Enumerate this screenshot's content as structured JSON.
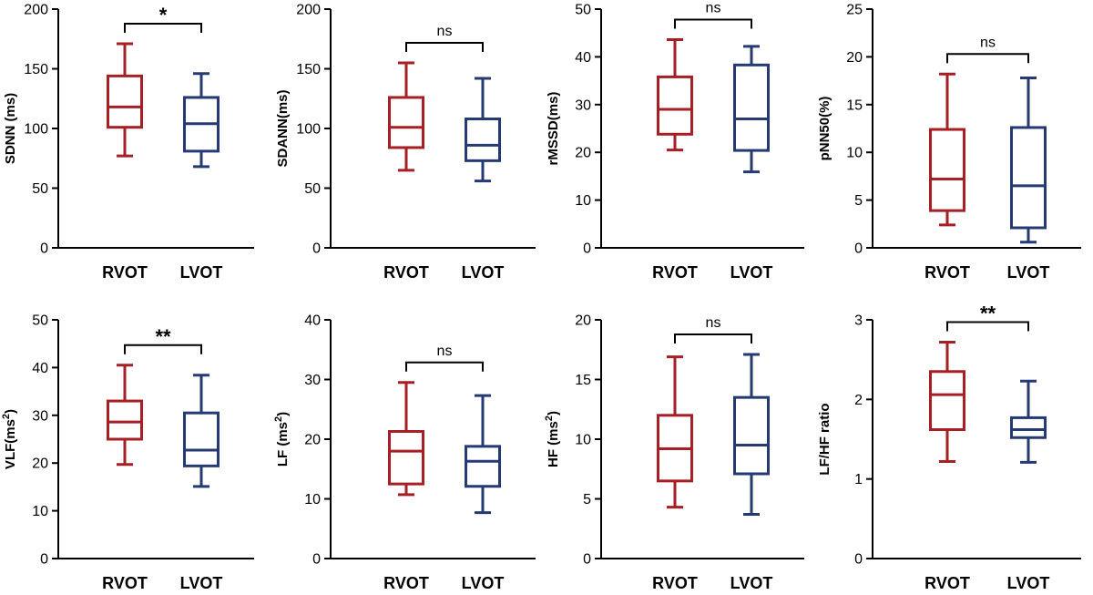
{
  "colors": {
    "RVOT": "#a51f24",
    "LVOT": "#253a72",
    "axis": "#000000"
  },
  "chart_data": [
    {
      "type": "box",
      "title": "",
      "ylabel": "SDNN (ms)",
      "ylabel_sup": "",
      "ylim": [
        0,
        200
      ],
      "yticks": [
        "0",
        "50",
        "100",
        "150",
        "200"
      ],
      "categories": [
        "RVOT",
        "LVOT"
      ],
      "boxes": [
        {
          "group": "RVOT",
          "min": 77,
          "q1": 101,
          "median": 118,
          "q3": 144,
          "max": 171
        },
        {
          "group": "LVOT",
          "min": 68,
          "q1": 81,
          "median": 104,
          "q3": 126,
          "max": 146
        }
      ],
      "significance": "*"
    },
    {
      "type": "box",
      "title": "",
      "ylabel": "SDANN(ms)",
      "ylabel_sup": "",
      "ylim": [
        0,
        200
      ],
      "yticks": [
        "0",
        "50",
        "100",
        "150",
        "200"
      ],
      "categories": [
        "RVOT",
        "LVOT"
      ],
      "boxes": [
        {
          "group": "RVOT",
          "min": 65,
          "q1": 84,
          "median": 101,
          "q3": 126,
          "max": 155
        },
        {
          "group": "LVOT",
          "min": 56,
          "q1": 73,
          "median": 86,
          "q3": 108,
          "max": 142
        }
      ],
      "significance": "ns"
    },
    {
      "type": "box",
      "title": "",
      "ylabel": "rMSSD(ms)",
      "ylabel_sup": "",
      "ylim": [
        0,
        50
      ],
      "yticks": [
        "0",
        "10",
        "20",
        "30",
        "40",
        "50"
      ],
      "categories": [
        "RVOT",
        "LVOT"
      ],
      "boxes": [
        {
          "group": "RVOT",
          "min": 20.5,
          "q1": 23.8,
          "median": 29,
          "q3": 35.8,
          "max": 43.6
        },
        {
          "group": "LVOT",
          "min": 15.9,
          "q1": 20.4,
          "median": 27,
          "q3": 38.3,
          "max": 42.2
        }
      ],
      "significance": "ns"
    },
    {
      "type": "box",
      "title": "",
      "ylabel": "pNN50(%)",
      "ylabel_sup": "",
      "ylim": [
        0,
        25
      ],
      "yticks": [
        "0",
        "5",
        "10",
        "15",
        "20",
        "25"
      ],
      "categories": [
        "RVOT",
        "LVOT"
      ],
      "boxes": [
        {
          "group": "RVOT",
          "min": 2.4,
          "q1": 3.9,
          "median": 7.2,
          "q3": 12.4,
          "max": 18.2
        },
        {
          "group": "LVOT",
          "min": 0.6,
          "q1": 2.1,
          "median": 6.5,
          "q3": 12.6,
          "max": 17.8
        }
      ],
      "significance": "ns"
    },
    {
      "type": "box",
      "title": "",
      "ylabel": "VLF(ms",
      "ylabel_sup": "2",
      "ylim": [
        0,
        50
      ],
      "yticks": [
        "0",
        "10",
        "20",
        "30",
        "40",
        "50"
      ],
      "categories": [
        "RVOT",
        "LVOT"
      ],
      "boxes": [
        {
          "group": "RVOT",
          "min": 19.7,
          "q1": 25,
          "median": 28.6,
          "q3": 33,
          "max": 40.5
        },
        {
          "group": "LVOT",
          "min": 15.1,
          "q1": 19.4,
          "median": 22.7,
          "q3": 30.5,
          "max": 38.4
        }
      ],
      "significance": "**"
    },
    {
      "type": "box",
      "title": "",
      "ylabel": "LF (ms",
      "ylabel_sup": "2",
      "ylim": [
        0,
        40
      ],
      "yticks": [
        "0",
        "10",
        "20",
        "30",
        "40"
      ],
      "categories": [
        "RVOT",
        "LVOT"
      ],
      "boxes": [
        {
          "group": "RVOT",
          "min": 10.7,
          "q1": 12.5,
          "median": 18,
          "q3": 21.3,
          "max": 29.5
        },
        {
          "group": "LVOT",
          "min": 7.7,
          "q1": 12.1,
          "median": 16.3,
          "q3": 18.8,
          "max": 27.3
        }
      ],
      "significance": "ns"
    },
    {
      "type": "box",
      "title": "",
      "ylabel": "HF (ms",
      "ylabel_sup": "2",
      "ylim": [
        0,
        20
      ],
      "yticks": [
        "0",
        "5",
        "10",
        "15",
        "20"
      ],
      "categories": [
        "RVOT",
        "LVOT"
      ],
      "boxes": [
        {
          "group": "RVOT",
          "min": 4.3,
          "q1": 6.5,
          "median": 9.2,
          "q3": 12,
          "max": 16.9
        },
        {
          "group": "LVOT",
          "min": 3.7,
          "q1": 7.1,
          "median": 9.5,
          "q3": 13.5,
          "max": 17.1
        }
      ],
      "significance": "ns"
    },
    {
      "type": "box",
      "title": "",
      "ylabel": "LF/HF ratio",
      "ylabel_sup": "",
      "ylim": [
        0,
        3
      ],
      "yticks": [
        "0",
        "1",
        "2",
        "3"
      ],
      "categories": [
        "RVOT",
        "LVOT"
      ],
      "boxes": [
        {
          "group": "RVOT",
          "min": 1.22,
          "q1": 1.62,
          "median": 2.06,
          "q3": 2.35,
          "max": 2.72
        },
        {
          "group": "LVOT",
          "min": 1.21,
          "q1": 1.52,
          "median": 1.62,
          "q3": 1.77,
          "max": 2.23
        }
      ],
      "significance": "**"
    }
  ]
}
